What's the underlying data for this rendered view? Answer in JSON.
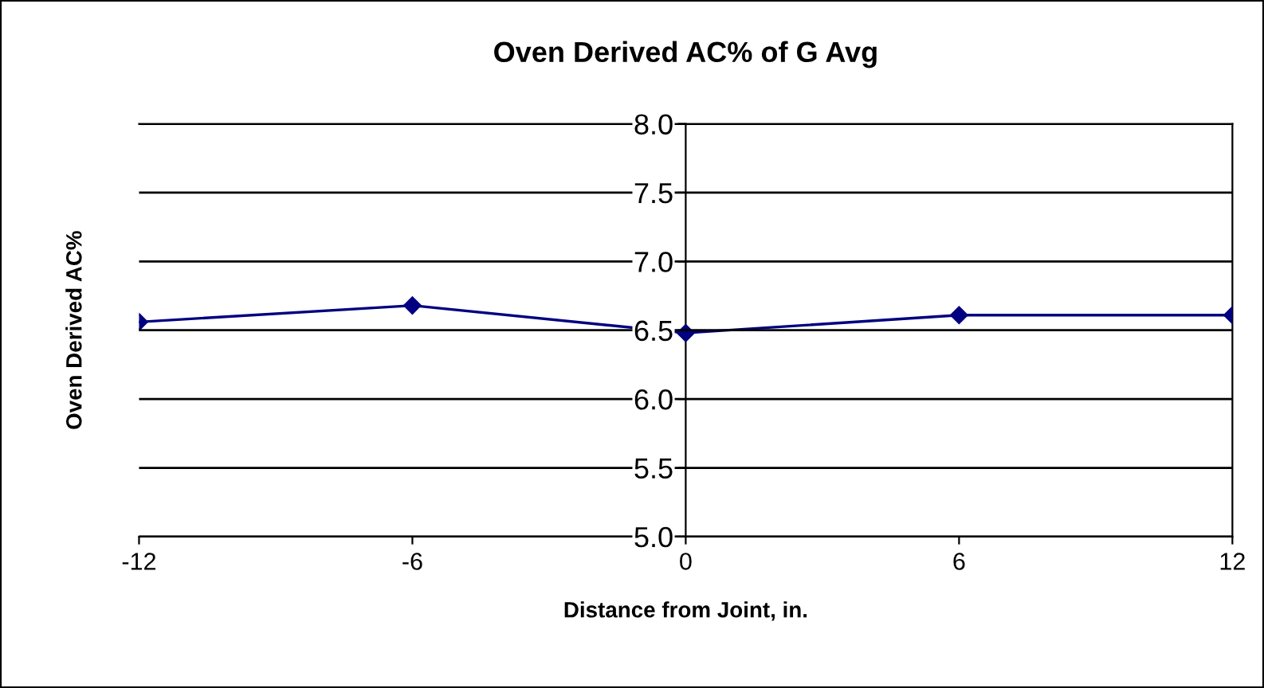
{
  "chart_data": {
    "type": "line",
    "title": "Oven Derived AC% of G Avg",
    "xlabel": "Distance from Joint, in.",
    "ylabel": "Oven Derived AC%",
    "x": [
      -12,
      -6,
      0,
      6,
      12
    ],
    "series": [
      {
        "color": "#000080",
        "values": [
          6.56,
          6.68,
          6.48,
          6.61,
          6.61
        ]
      }
    ],
    "xlim": [
      -12,
      12
    ],
    "xticks": [
      -12,
      -6,
      0,
      6,
      12
    ],
    "ylim": [
      5.0,
      8.0
    ],
    "yticks": [
      {
        "value": 5.0,
        "label": "5.0"
      },
      {
        "value": 5.5,
        "label": "5.5"
      },
      {
        "value": 6.0,
        "label": "6.0"
      },
      {
        "value": 6.5,
        "label": "6.5"
      },
      {
        "value": 7.0,
        "label": "7.0"
      },
      {
        "value": 7.5,
        "label": "7.5"
      },
      {
        "value": 8.0,
        "label": "8.0"
      }
    ],
    "grid": "y",
    "marker": "diamond",
    "line_style": "solid"
  }
}
